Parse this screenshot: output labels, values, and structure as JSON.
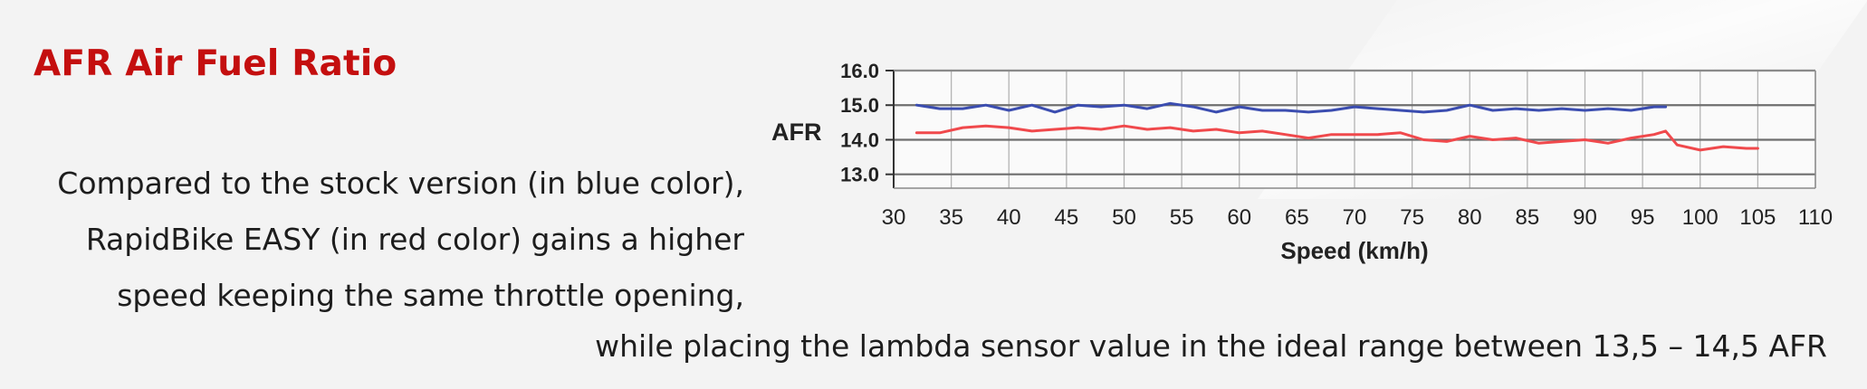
{
  "page": {
    "heading": "AFR Air Fuel Ratio",
    "description_lines": [
      "Compared to the stock version (in blue color),",
      "RapidBike EASY (in red color) gains a higher",
      "speed keeping the same throttle opening,"
    ],
    "footer_line": "while placing the lambda sensor value in the ideal range between 13,5 – 14,5 AFR"
  },
  "chart_data": {
    "type": "line",
    "title": "",
    "xlabel": "Speed (km/h)",
    "ylabel": "AFR",
    "xlim": [
      30,
      110
    ],
    "ylim": [
      12.6,
      16.0
    ],
    "xticks": [
      30,
      35,
      40,
      45,
      50,
      55,
      60,
      65,
      70,
      75,
      80,
      85,
      90,
      95,
      100,
      105,
      110
    ],
    "xtick_labels": [
      "30",
      "35",
      "40",
      "45",
      "50",
      "55",
      "60",
      "65",
      "70",
      "75",
      "80",
      "85",
      "90",
      "95",
      "100",
      "105",
      "110"
    ],
    "yticks": [
      13.0,
      14.0,
      15.0,
      16.0
    ],
    "ytick_labels": [
      "13.0",
      "14.0",
      "15.0",
      "16.0"
    ],
    "grid": true,
    "legend": "none",
    "series": [
      {
        "color": "#3b4db0",
        "x": [
          32,
          34,
          36,
          38,
          40,
          42,
          44,
          46,
          48,
          50,
          52,
          54,
          56,
          58,
          60,
          62,
          64,
          66,
          68,
          70,
          72,
          74,
          76,
          78,
          80,
          82,
          84,
          86,
          88,
          90,
          92,
          94,
          96,
          97
        ],
        "y": [
          15.0,
          14.9,
          14.9,
          15.0,
          14.85,
          15.0,
          14.8,
          15.0,
          14.95,
          15.0,
          14.9,
          15.05,
          14.95,
          14.8,
          14.95,
          14.85,
          14.85,
          14.8,
          14.85,
          14.95,
          14.9,
          14.85,
          14.8,
          14.85,
          15.0,
          14.85,
          14.9,
          14.85,
          14.9,
          14.85,
          14.9,
          14.85,
          14.95,
          14.95
        ]
      },
      {
        "color": "#f0494c",
        "x": [
          32,
          34,
          36,
          38,
          40,
          42,
          44,
          46,
          48,
          50,
          52,
          54,
          56,
          58,
          60,
          62,
          64,
          66,
          68,
          70,
          72,
          74,
          76,
          78,
          80,
          82,
          84,
          86,
          88,
          90,
          92,
          94,
          96,
          97,
          98,
          100,
          102,
          104,
          105
        ],
        "y": [
          14.2,
          14.2,
          14.35,
          14.4,
          14.35,
          14.25,
          14.3,
          14.35,
          14.3,
          14.4,
          14.3,
          14.35,
          14.25,
          14.3,
          14.2,
          14.25,
          14.15,
          14.05,
          14.15,
          14.15,
          14.15,
          14.2,
          14.0,
          13.95,
          14.1,
          14.0,
          14.05,
          13.9,
          13.95,
          14.0,
          13.9,
          14.05,
          14.15,
          14.25,
          13.85,
          13.7,
          13.8,
          13.75,
          13.75
        ]
      }
    ]
  }
}
